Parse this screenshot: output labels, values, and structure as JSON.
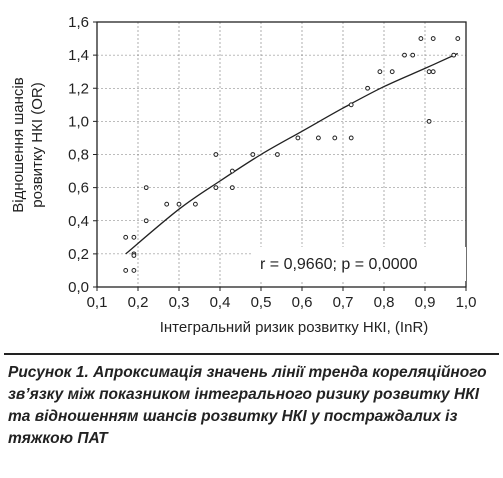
{
  "chart_data": {
    "type": "scatter",
    "xlabel": "Інтегральний ризик розвитку НКІ, (InR)",
    "ylabel_line1": "Відношення шансів",
    "ylabel_line2": "розвитку НКІ (OR)",
    "xlim": [
      0.1,
      1.0
    ],
    "ylim": [
      0.0,
      1.6
    ],
    "x_ticks": [
      "0,1",
      "0,2",
      "0,3",
      "0,4",
      "0,5",
      "0,6",
      "0,7",
      "0,8",
      "0,9",
      "1,0"
    ],
    "y_ticks": [
      "0,0",
      "0,2",
      "0,4",
      "0,6",
      "0,8",
      "1,0",
      "1,2",
      "1,4",
      "1,6"
    ],
    "grid": true,
    "annotation": "r = 0,9660; p = 0,0000",
    "points": [
      [
        0.17,
        0.3
      ],
      [
        0.17,
        0.1
      ],
      [
        0.19,
        0.3
      ],
      [
        0.19,
        0.2
      ],
      [
        0.19,
        0.19
      ],
      [
        0.19,
        0.1
      ],
      [
        0.22,
        0.6
      ],
      [
        0.22,
        0.4
      ],
      [
        0.27,
        0.5
      ],
      [
        0.3,
        0.5
      ],
      [
        0.34,
        0.5
      ],
      [
        0.39,
        0.8
      ],
      [
        0.39,
        0.6
      ],
      [
        0.43,
        0.7
      ],
      [
        0.43,
        0.6
      ],
      [
        0.48,
        0.8
      ],
      [
        0.54,
        0.8
      ],
      [
        0.59,
        0.9
      ],
      [
        0.64,
        0.9
      ],
      [
        0.68,
        0.9
      ],
      [
        0.72,
        1.1
      ],
      [
        0.72,
        0.9
      ],
      [
        0.76,
        1.2
      ],
      [
        0.79,
        1.3
      ],
      [
        0.82,
        1.3
      ],
      [
        0.85,
        1.4
      ],
      [
        0.87,
        1.4
      ],
      [
        0.89,
        1.5
      ],
      [
        0.91,
        1.3
      ],
      [
        0.91,
        1.0
      ],
      [
        0.92,
        1.5
      ],
      [
        0.92,
        1.3
      ],
      [
        0.97,
        1.4
      ],
      [
        0.98,
        1.5
      ]
    ],
    "trend_line": {
      "type": "curve",
      "x": [
        0.17,
        0.3,
        0.4,
        0.5,
        0.6,
        0.7,
        0.8,
        0.9,
        0.98
      ],
      "y": [
        0.2,
        0.47,
        0.64,
        0.8,
        0.94,
        1.08,
        1.21,
        1.32,
        1.41
      ]
    }
  },
  "caption": {
    "text": "Рисунок 1. Апроксимація значень лінії тренда кореляційного зв’язку між показником інтегрального ризику розвитку НКІ та відношенням шансів розвитку НКІ у постраждалих із тяжкою ПАТ"
  }
}
